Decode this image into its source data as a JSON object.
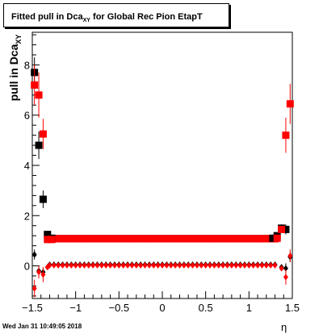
{
  "chart_data": {
    "type": "scatter",
    "title": "Fitted pull in Dca",
    "title_subscript": "XY",
    "title_suffix": " for Global Rec Pion EtapT",
    "ylabel": "pull in Dca",
    "ylabel_subscript": "XY",
    "xlabel": "η",
    "xlim": [
      -1.5,
      1.5
    ],
    "ylim": [
      -1.3,
      9.3
    ],
    "x_ticks": [
      -1.5,
      -1.0,
      -0.5,
      0,
      0.5,
      1.0,
      1.5
    ],
    "x_tick_labels": [
      "−1.5",
      "−1",
      "−0.5",
      "0",
      "0.5",
      "1",
      "1.5"
    ],
    "y_ticks": [
      0,
      2,
      4,
      6,
      8
    ],
    "y_tick_labels": [
      "0",
      "2",
      "4",
      "6",
      "8"
    ],
    "grid": false,
    "series": [
      {
        "marker": "square",
        "color": "#000000",
        "x": [
          -1.475,
          -1.425,
          -1.375,
          -1.325,
          -1.275,
          1.275,
          1.325,
          1.375,
          1.425
        ],
        "y": [
          7.7,
          4.8,
          2.65,
          1.25,
          1.1,
          1.1,
          1.2,
          1.5,
          1.45
        ],
        "err": [
          0.6,
          0.55,
          0.35,
          0.1,
          0.05,
          0.05,
          0.08,
          0.15,
          0.2
        ]
      },
      {
        "marker": "square",
        "color": "#ff0000",
        "x": [
          -1.475,
          -1.425,
          -1.375,
          -1.325,
          -1.275,
          1.325,
          1.375,
          1.425,
          1.475
        ],
        "y": [
          7.2,
          6.8,
          5.25,
          1.05,
          1.05,
          1.1,
          1.45,
          5.2,
          6.45
        ],
        "err": [
          0.8,
          0.9,
          0.6,
          0.05,
          0.04,
          0.05,
          0.12,
          0.7,
          0.8
        ]
      },
      {
        "marker": "diamond",
        "color": "#000000",
        "x": [
          -1.475,
          -1.425,
          -1.375,
          -1.325,
          1.375,
          1.425,
          1.475
        ],
        "y": [
          0.45,
          -0.2,
          -0.25,
          -0.05,
          -0.05,
          -0.1,
          0.35
        ],
        "err": [
          0.2,
          0.2,
          0.15,
          0.05,
          0.05,
          0.2,
          0.2
        ]
      },
      {
        "marker": "diamond",
        "color": "#ff0000",
        "x": [
          -1.475,
          -1.425,
          -1.375,
          -1.325,
          1.375,
          1.425,
          1.475
        ],
        "y": [
          -0.9,
          -0.25,
          -0.35,
          -0.05,
          -0.1,
          -0.45,
          0.4
        ],
        "err": [
          0.35,
          0.25,
          0.3,
          0.05,
          0.05,
          0.3,
          0.25
        ]
      }
    ],
    "bands": [
      {
        "marker": "square",
        "color": "#000000",
        "x_from": -1.3,
        "x_to": 1.3,
        "step": 0.025,
        "y": 1.08
      },
      {
        "marker": "square",
        "color": "#ff0000",
        "x_from": -1.3,
        "x_to": 1.3,
        "step": 0.025,
        "y": 1.08
      },
      {
        "marker": "diamond",
        "color": "#000000",
        "x_from": -1.3,
        "x_to": 1.3,
        "step": 0.05,
        "y": 0.05
      },
      {
        "marker": "diamond",
        "color": "#ff0000",
        "x_from": -1.3,
        "x_to": 1.3,
        "step": 0.05,
        "y": 0.02
      }
    ]
  },
  "footer": {
    "timestamp": "Wed Jan 31 10:49:05 2018"
  }
}
